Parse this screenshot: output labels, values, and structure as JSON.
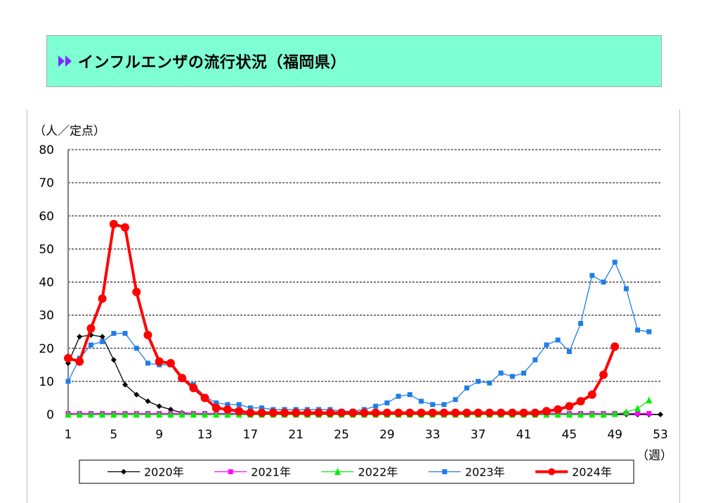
{
  "banner": {
    "title": "インフルエンザの流行状況（福岡県）",
    "icon": "double-play-arrow-icon",
    "background": "#7fffd4",
    "icon_color": "#7b2cff"
  },
  "chart_data": {
    "type": "line",
    "y_unit_label": "（人／定点）",
    "x_unit_label": "（週）",
    "ylim": [
      0,
      80
    ],
    "yticks": [
      0,
      10,
      20,
      30,
      40,
      50,
      60,
      70,
      80
    ],
    "xlim": [
      1,
      53
    ],
    "xticks": [
      1,
      5,
      9,
      13,
      17,
      21,
      25,
      29,
      33,
      37,
      41,
      45,
      49,
      53
    ],
    "grid": "horizontal-dashed",
    "legend_placement": "bottom",
    "series": [
      {
        "name": "2020年",
        "color": "#000000",
        "marker": "diamond",
        "x": [
          1,
          2,
          3,
          4,
          5,
          6,
          7,
          8,
          9,
          10,
          11,
          12,
          13,
          14,
          15,
          16,
          17,
          18,
          19,
          20,
          21,
          22,
          23,
          24,
          25,
          26,
          27,
          28,
          29,
          30,
          31,
          32,
          33,
          34,
          35,
          36,
          37,
          38,
          39,
          40,
          41,
          42,
          43,
          44,
          45,
          46,
          47,
          48,
          49,
          50,
          51,
          52,
          53
        ],
        "values": [
          15.5,
          23.5,
          24,
          23.5,
          16.5,
          9,
          6,
          4,
          2.5,
          1.5,
          0.5,
          0.3,
          0.2,
          0.1,
          0.1,
          0,
          0,
          0,
          0,
          0,
          0,
          0,
          0,
          0,
          0,
          0,
          0,
          0,
          0,
          0,
          0,
          0,
          0,
          0,
          0,
          0,
          0,
          0,
          0,
          0,
          0,
          0,
          0,
          0,
          0,
          0,
          0,
          0,
          0,
          0,
          0,
          0,
          0
        ]
      },
      {
        "name": "2021年",
        "color": "#ff00ff",
        "marker": "square",
        "x": [
          1,
          2,
          3,
          4,
          5,
          6,
          7,
          8,
          9,
          10,
          11,
          12,
          13,
          14,
          15,
          16,
          17,
          18,
          19,
          20,
          21,
          22,
          23,
          24,
          25,
          26,
          27,
          28,
          29,
          30,
          31,
          32,
          33,
          34,
          35,
          36,
          37,
          38,
          39,
          40,
          41,
          42,
          43,
          44,
          45,
          46,
          47,
          48,
          49,
          50,
          51,
          52
        ],
        "values": [
          0.3,
          0.3,
          0.3,
          0.3,
          0.3,
          0.3,
          0.3,
          0.3,
          0.3,
          0.3,
          0.3,
          0.3,
          0.3,
          0.3,
          0.3,
          0.3,
          0.3,
          0.3,
          0.3,
          0.3,
          0.3,
          0.3,
          0.3,
          0.3,
          0.3,
          0.3,
          0.3,
          0.3,
          0.3,
          0.3,
          0.3,
          0.3,
          0.3,
          0.3,
          0.3,
          0.3,
          0.3,
          0.3,
          0.3,
          0.3,
          0.3,
          0.3,
          0.3,
          0.3,
          0.3,
          0.3,
          0.3,
          0.3,
          0.3,
          0.3,
          0.3,
          0.3
        ]
      },
      {
        "name": "2022年",
        "color": "#00ee00",
        "marker": "triangle",
        "x": [
          1,
          2,
          3,
          4,
          5,
          6,
          7,
          8,
          9,
          10,
          11,
          12,
          13,
          14,
          15,
          16,
          17,
          18,
          19,
          20,
          21,
          22,
          23,
          24,
          25,
          26,
          27,
          28,
          29,
          30,
          31,
          32,
          33,
          34,
          35,
          36,
          37,
          38,
          39,
          40,
          41,
          42,
          43,
          44,
          45,
          46,
          47,
          48,
          49,
          50,
          51,
          52
        ],
        "values": [
          0,
          0,
          0,
          0,
          0,
          0,
          0,
          0,
          0,
          0,
          0,
          0,
          0,
          0,
          0,
          0,
          0,
          0,
          0,
          0,
          0,
          0,
          0,
          0,
          0,
          0,
          0,
          0,
          0,
          0,
          0,
          0,
          0,
          0,
          0,
          0,
          0,
          0,
          0,
          0,
          0,
          0,
          0,
          0,
          0,
          0,
          0,
          0,
          0.2,
          0.7,
          1.8,
          4.3
        ]
      },
      {
        "name": "2023年",
        "color": "#1e7ee8",
        "marker": "square",
        "x": [
          1,
          2,
          3,
          4,
          5,
          6,
          7,
          8,
          9,
          10,
          11,
          12,
          13,
          14,
          15,
          16,
          17,
          18,
          19,
          20,
          21,
          22,
          23,
          24,
          25,
          26,
          27,
          28,
          29,
          30,
          31,
          32,
          33,
          34,
          35,
          36,
          37,
          38,
          39,
          40,
          41,
          42,
          43,
          44,
          45,
          46,
          47,
          48,
          49,
          50,
          51,
          52
        ],
        "values": [
          10,
          17,
          21,
          22,
          24.5,
          24.5,
          20,
          15.5,
          15,
          15,
          10.5,
          9,
          5.5,
          3.5,
          3,
          3,
          2,
          2,
          1.5,
          1.5,
          1.5,
          1.5,
          1.5,
          1.5,
          1,
          1,
          1.5,
          2.5,
          3.5,
          5.5,
          6,
          4,
          3,
          3,
          4.5,
          8,
          10,
          9.5,
          12.5,
          11.5,
          12.5,
          16.5,
          21,
          22.5,
          19,
          27.5,
          42,
          40,
          46,
          38,
          25.5,
          25
        ]
      },
      {
        "name": "2024年",
        "color": "#ff0000",
        "marker": "circle",
        "x": [
          1,
          2,
          3,
          4,
          5,
          6,
          7,
          8,
          9,
          10,
          11,
          12,
          13,
          14,
          15,
          16,
          17,
          18,
          19,
          20,
          21,
          22,
          23,
          24,
          25,
          26,
          27,
          28,
          29,
          30,
          31,
          32,
          33,
          34,
          35,
          36,
          37,
          38,
          39,
          40,
          41,
          42,
          43,
          44,
          45,
          46,
          47,
          48,
          49
        ],
        "values": [
          17,
          16,
          26,
          35,
          57.5,
          56.5,
          37,
          24,
          16,
          15.5,
          11,
          8,
          5,
          2,
          1.5,
          1,
          0.5,
          0.5,
          0.5,
          0.5,
          0.5,
          0.5,
          0.5,
          0.5,
          0.5,
          0.5,
          0.5,
          0.5,
          0.5,
          0.5,
          0.5,
          0.5,
          0.5,
          0.5,
          0.5,
          0.5,
          0.5,
          0.5,
          0.5,
          0.5,
          0.5,
          0.5,
          1,
          1.5,
          2.5,
          4,
          6,
          12,
          20.5
        ]
      }
    ]
  }
}
